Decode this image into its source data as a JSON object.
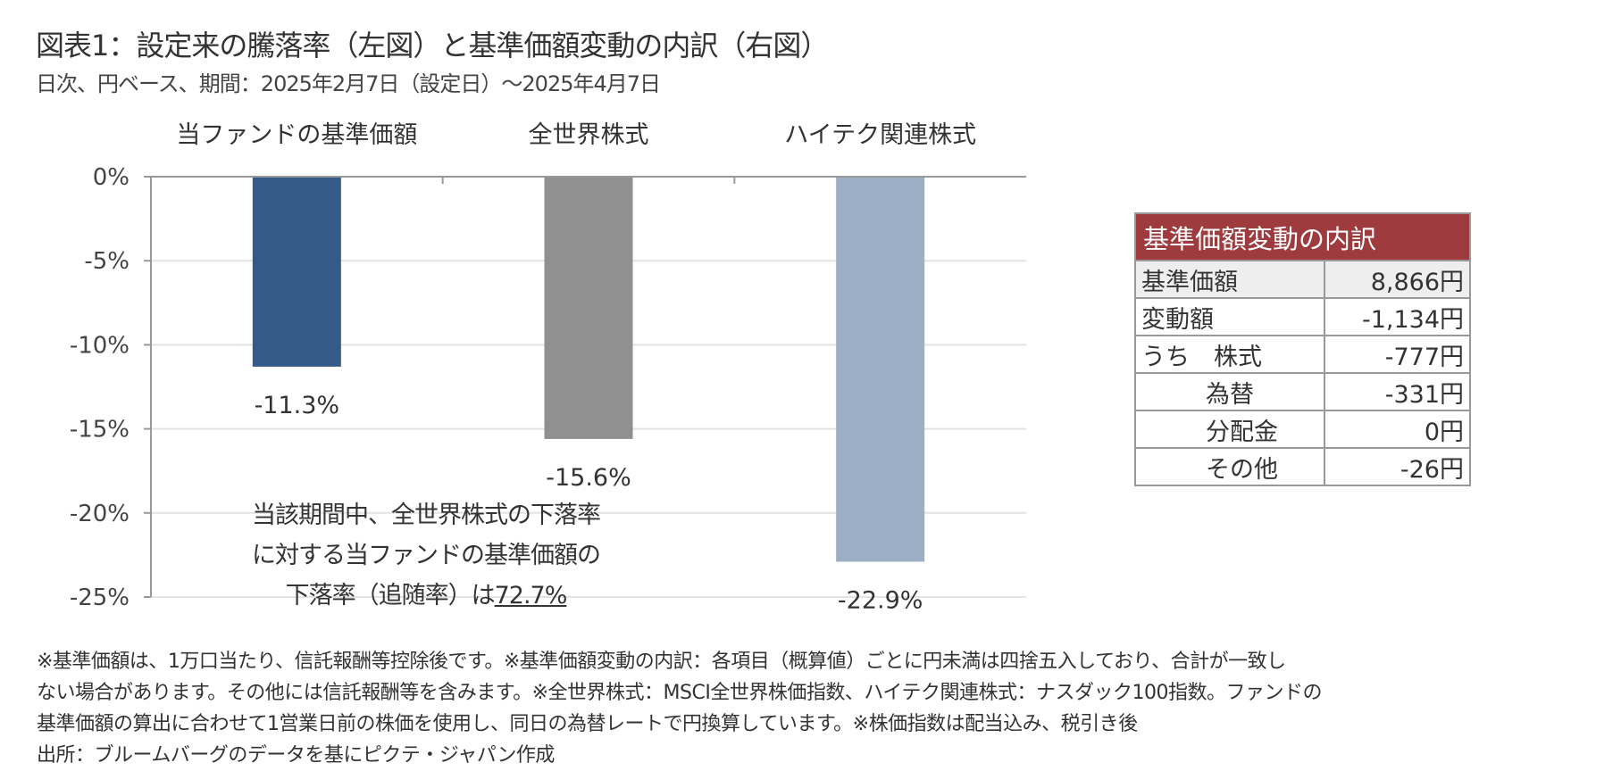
{
  "title": "図表1：設定来の騰落率（左図）と基準価額変動の内訳（右図）",
  "subtitle": "日次、円ベース、期間：2025年2月7日（設定日）〜2025年4月7日",
  "chart_data": {
    "type": "bar",
    "categories": [
      "当ファンドの基準価額",
      "全世界株式",
      "ハイテク関連株式"
    ],
    "values": [
      -11.3,
      -15.6,
      -22.9
    ],
    "value_labels": [
      "-11.3%",
      "-15.6%",
      "-22.9%"
    ],
    "colors": [
      "#345A8A",
      "#909090",
      "#9BAEC4"
    ],
    "ylim": [
      -25,
      0
    ],
    "yticks": [
      0,
      -5,
      -10,
      -15,
      -20,
      -25
    ],
    "ytick_labels": [
      "0%",
      "-5%",
      "-10%",
      "-15%",
      "-20%",
      "-25%"
    ],
    "grid": true,
    "categories_position": "top",
    "annotation": {
      "line1": "当該期間中、全世界株式の下落率",
      "line2": "に対する当ファンドの基準価額の",
      "line3_prefix": "下落率（追随率）は",
      "line3_value": "72.7%"
    }
  },
  "table": {
    "header": "基準価額変動の内訳",
    "rows": [
      {
        "label": "基準価額",
        "value": "8,866円"
      },
      {
        "label": "変動額",
        "value": "-1,134円"
      },
      {
        "label": "うち　株式",
        "value": "-777円"
      },
      {
        "label": "為替",
        "value": "-331円"
      },
      {
        "label": "分配金",
        "value": "0円"
      },
      {
        "label": "その他",
        "value": "-26円"
      }
    ]
  },
  "notes": [
    "※基準価額は、1万口当たり、信託報酬等控除後です。※基準価額変動の内訳：各項目（概算値）ごとに円未満は四捨五入しており、合計が一致し",
    "ない場合があります。その他には信託報酬等を含みます。※全世界株式：MSCI全世界株価指数、ハイテク関連株式：ナスダック100指数。ファンドの",
    "基準価額の算出に合わせて1営業日前の株価を使用し、同日の為替レートで円換算しています。※株価指数は配当込み、税引き後",
    "出所：ブルームバーグのデータを基にピクテ・ジャパン作成"
  ]
}
